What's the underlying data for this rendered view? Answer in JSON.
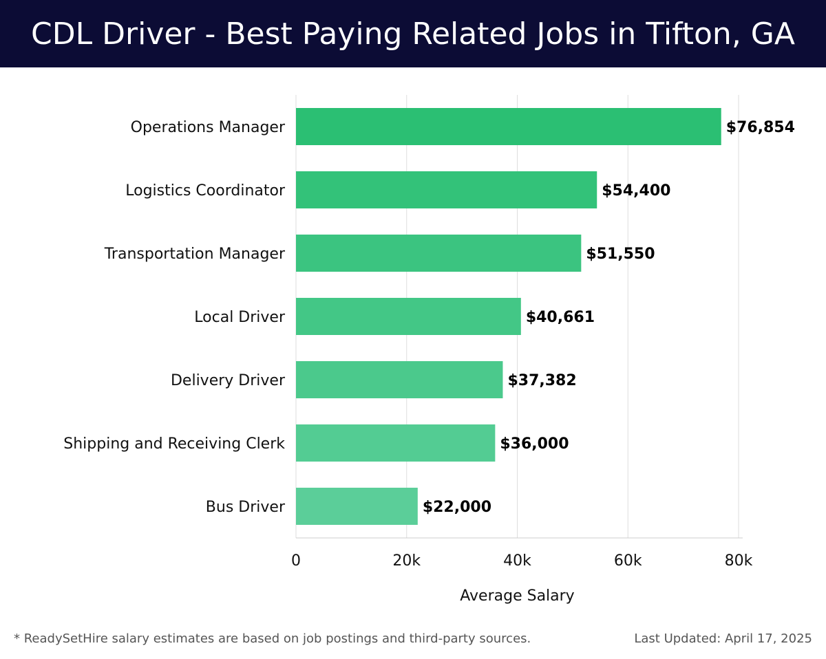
{
  "header": {
    "title": "CDL Driver - Best Paying Related Jobs in Tifton, GA"
  },
  "chart_data": {
    "type": "bar",
    "orientation": "horizontal",
    "categories": [
      "Operations Manager",
      "Logistics Coordinator",
      "Transportation Manager",
      "Local Driver",
      "Delivery Driver",
      "Shipping and Receiving Clerk",
      "Bus Driver"
    ],
    "values": [
      76854,
      54400,
      51550,
      40661,
      37382,
      36000,
      22000
    ],
    "value_labels": [
      "$76,854",
      "$54,400",
      "$51,550",
      "$40,661",
      "$37,382",
      "$36,000",
      "$22,000"
    ],
    "xlabel": "Average Salary",
    "xlim": [
      0,
      80000
    ],
    "xticks": [
      0,
      20000,
      40000,
      60000,
      80000
    ],
    "xtick_labels": [
      "0",
      "20k",
      "40k",
      "60k",
      "80k"
    ],
    "grid": "vertical",
    "colors": {
      "bar_top": "#2bbf73",
      "bar_bottom": "#5bce99",
      "gridline": "#dddddd",
      "axis": "#cccccc"
    }
  },
  "footer": {
    "note": "* ReadySetHire salary estimates are based on job postings and third-party sources.",
    "updated": "Last Updated: April 17, 2025"
  }
}
